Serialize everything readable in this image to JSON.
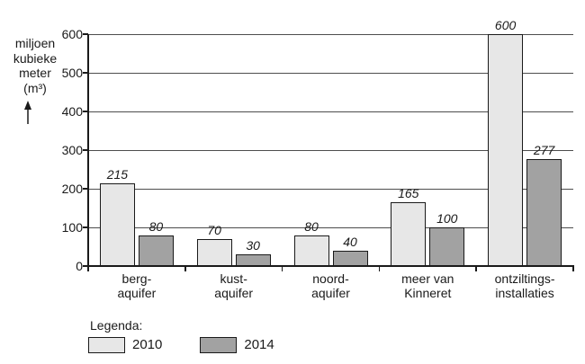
{
  "chart_data": {
    "type": "bar",
    "title": "",
    "unit_label_lines": [
      "miljoen",
      "kubieke",
      "meter",
      "(m³)"
    ],
    "unit_arrow": "up-arrow",
    "categories": [
      [
        "berg-",
        "aquifer"
      ],
      [
        "kust-",
        "aquifer"
      ],
      [
        "noord-",
        "aquifer"
      ],
      [
        "meer van",
        "Kinneret"
      ],
      [
        "ontziltings-",
        "installaties"
      ]
    ],
    "series": [
      {
        "name": "2010",
        "color": "#e7e7e7",
        "values": [
          215,
          70,
          80,
          165,
          600
        ]
      },
      {
        "name": "2014",
        "color": "#a2a2a2",
        "values": [
          80,
          30,
          40,
          100,
          277
        ]
      }
    ],
    "ylim": [
      0,
      600
    ],
    "yticks": [
      0,
      100,
      200,
      300,
      400,
      500,
      600
    ],
    "grid": true,
    "value_labels_style": "italic",
    "legend_title": "Legenda:",
    "legend_position": "bottom-left",
    "colors": {
      "axis": "#1a1a1a",
      "gridline": "#4d4d4d",
      "bar_border": "#1a1a1a",
      "text": "#1a1a1a",
      "background": "#ffffff"
    }
  }
}
